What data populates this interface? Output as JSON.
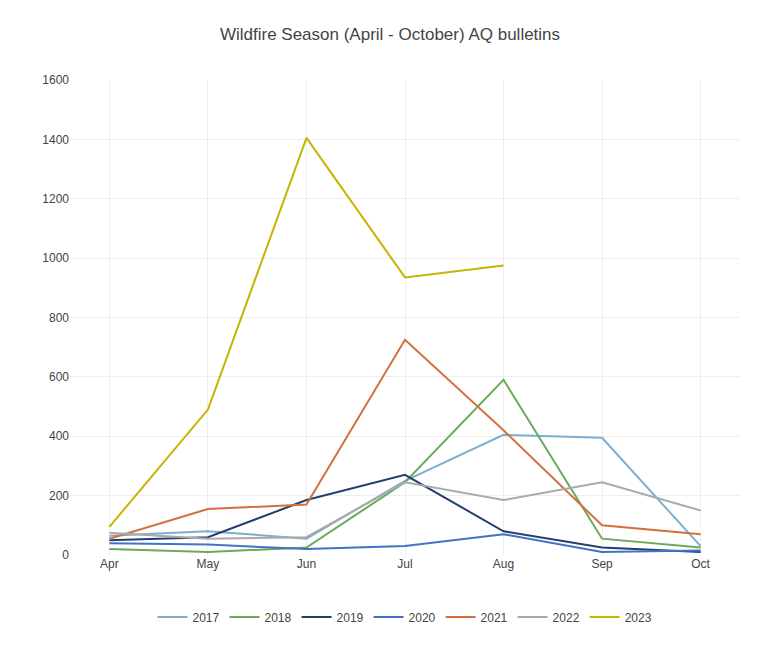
{
  "chart_data": {
    "type": "line",
    "title": "Wildfire Season (April - October) AQ bulletins",
    "categories": [
      "Apr",
      "May",
      "Jun",
      "Jul",
      "Aug",
      "Sep",
      "Oct"
    ],
    "series": [
      {
        "name": "2017",
        "color": "#7eaecf",
        "values": [
          65,
          80,
          55,
          250,
          405,
          395,
          30
        ]
      },
      {
        "name": "2018",
        "color": "#6aaa5b",
        "values": [
          20,
          10,
          25,
          245,
          590,
          55,
          25
        ]
      },
      {
        "name": "2019",
        "color": "#243f6e",
        "values": [
          50,
          60,
          185,
          270,
          80,
          25,
          10
        ]
      },
      {
        "name": "2020",
        "color": "#4472c4",
        "values": [
          40,
          35,
          20,
          30,
          70,
          10,
          15
        ]
      },
      {
        "name": "2021",
        "color": "#d4703d",
        "values": [
          55,
          155,
          170,
          725,
          420,
          100,
          70
        ]
      },
      {
        "name": "2022",
        "color": "#aaaaaa",
        "values": [
          75,
          55,
          60,
          245,
          185,
          245,
          150
        ]
      },
      {
        "name": "2023",
        "color": "#c8b400",
        "values": [
          95,
          490,
          1405,
          935,
          975,
          null,
          null
        ]
      }
    ],
    "ylim": [
      0,
      1600
    ],
    "yticks": [
      0,
      200,
      400,
      600,
      800,
      1000,
      1200,
      1400,
      1600
    ],
    "grid": true,
    "legend": "bottom"
  }
}
